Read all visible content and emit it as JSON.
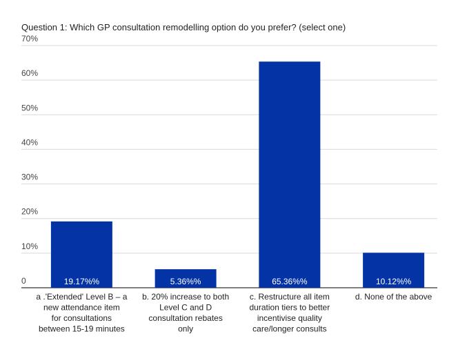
{
  "chart_data": {
    "type": "bar",
    "title": "Question 1: Which GP consultation remodelling option do you prefer? (select one)",
    "categories": [
      [
        "a .'Extended' Level B – a",
        "new attendance item",
        "for consultations",
        "between 15-19 minutes"
      ],
      [
        "b. 20% increase to both",
        "Level C and D",
        "consultation rebates",
        "only"
      ],
      [
        "c. Restructure all item",
        "duration tiers to better",
        "incentivise quality",
        "care/longer consults"
      ],
      [
        "d. None of the above"
      ]
    ],
    "values": [
      19.17,
      5.36,
      65.36,
      10.12
    ],
    "data_labels": [
      "19.17%%",
      "5.36%%",
      "65.36%%",
      "10.12%%"
    ],
    "y_ticks": [
      "0",
      "10%",
      "20%",
      "30%",
      "40%",
      "50%",
      "60%",
      "70%"
    ],
    "ylim": [
      0,
      70
    ],
    "grid": true,
    "colors": {
      "bar": "#0433a6",
      "grid": "#d9d9d9",
      "axis": "#333333"
    }
  }
}
